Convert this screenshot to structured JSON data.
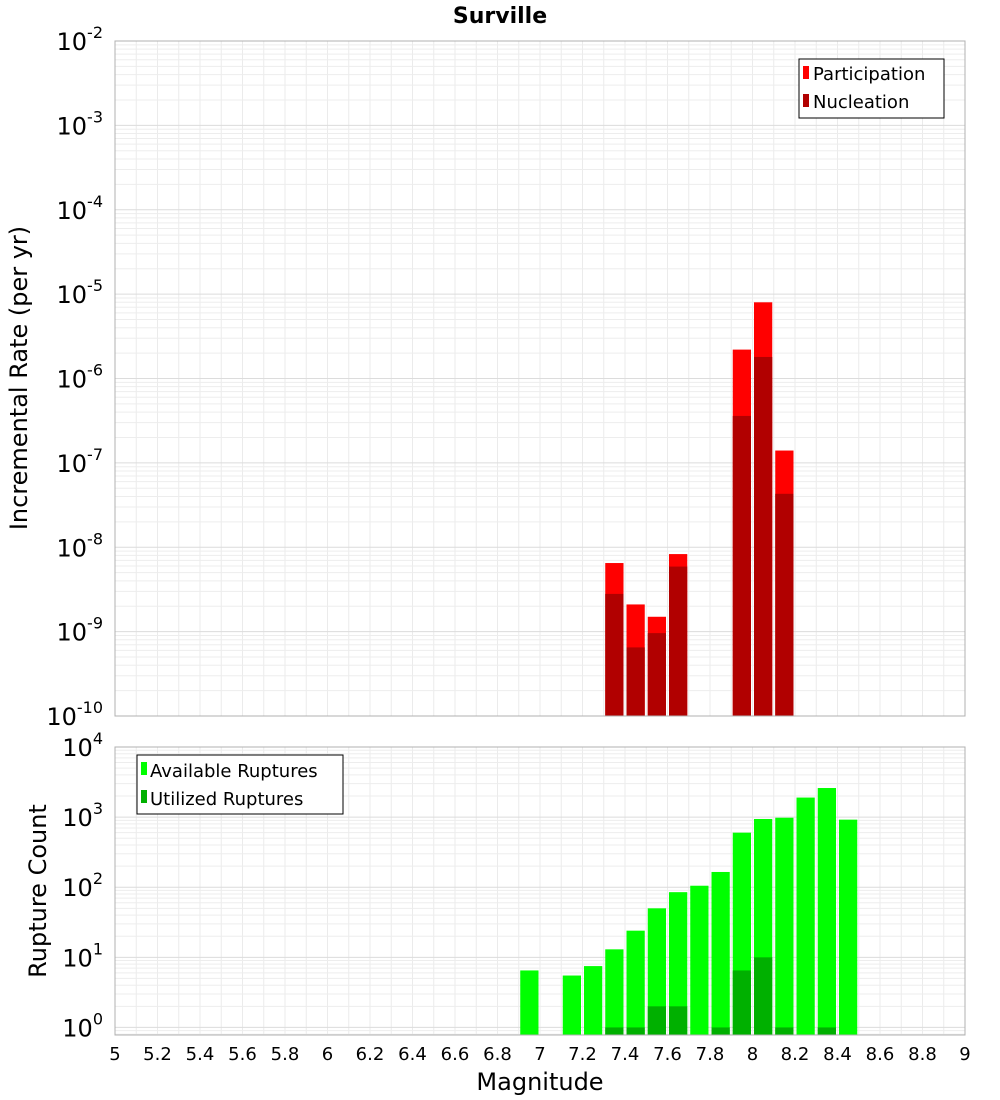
{
  "chart_data": [
    {
      "type": "bar",
      "title": "Surville",
      "xlabel": "Magnitude",
      "ylabel": "Incremental Rate (per yr)",
      "yscale": "log",
      "xlim": [
        5,
        9
      ],
      "ylim": [
        1e-10,
        0.01
      ],
      "y_tick_exponents": [
        "-10",
        "-9",
        "-8",
        "-7",
        "-6",
        "-5",
        "-4",
        "-3",
        "-2"
      ],
      "grid": true,
      "legend_position": "top-right",
      "bar_width": 0.1,
      "x": [
        7.35,
        7.45,
        7.55,
        7.65,
        7.95,
        8.05,
        8.15
      ],
      "series": [
        {
          "name": "Participation",
          "color": "#ff0000",
          "values": [
            6.5e-09,
            2.1e-09,
            1.5e-09,
            8.3e-09,
            2.2e-06,
            8e-06,
            1.4e-07
          ]
        },
        {
          "name": "Nucleation",
          "color": "#b10000",
          "values": [
            2.8e-09,
            6.5e-10,
            9.6e-10,
            5.9e-09,
            3.6e-07,
            1.8e-06,
            4.3e-08
          ]
        }
      ]
    },
    {
      "type": "bar",
      "xlabel": "Magnitude",
      "ylabel": "Rupture Count",
      "yscale": "log",
      "xlim": [
        5,
        9
      ],
      "ylim": [
        0.78,
        10000
      ],
      "y_tick_exponents": [
        "0",
        "1",
        "2",
        "3",
        "4"
      ],
      "x_ticks": [
        "5",
        "5.2",
        "5.4",
        "5.6",
        "5.8",
        "6",
        "6.2",
        "6.4",
        "6.6",
        "6.8",
        "7",
        "7.2",
        "7.4",
        "7.6",
        "7.8",
        "8",
        "8.2",
        "8.4",
        "8.6",
        "8.8",
        "9"
      ],
      "grid": true,
      "legend_position": "top-left",
      "bar_width": 0.1,
      "series": [
        {
          "name": "Available Ruptures",
          "color": "#00ff00",
          "x": [
            6.95,
            7.15,
            7.25,
            7.35,
            7.45,
            7.55,
            7.65,
            7.75,
            7.85,
            7.95,
            8.05,
            8.15,
            8.25,
            8.35,
            8.45
          ],
          "values": [
            6.5,
            5.5,
            7.5,
            13,
            24,
            50,
            85,
            105,
            165,
            600,
            940,
            980,
            1900,
            2600,
            920
          ]
        },
        {
          "name": "Utilized Ruptures",
          "color": "#00b000",
          "x": [
            7.35,
            7.45,
            7.55,
            7.65,
            7.85,
            7.95,
            8.05,
            8.15,
            8.35
          ],
          "values": [
            1,
            1,
            2,
            2,
            1,
            6.5,
            10,
            1,
            1
          ]
        }
      ]
    }
  ]
}
